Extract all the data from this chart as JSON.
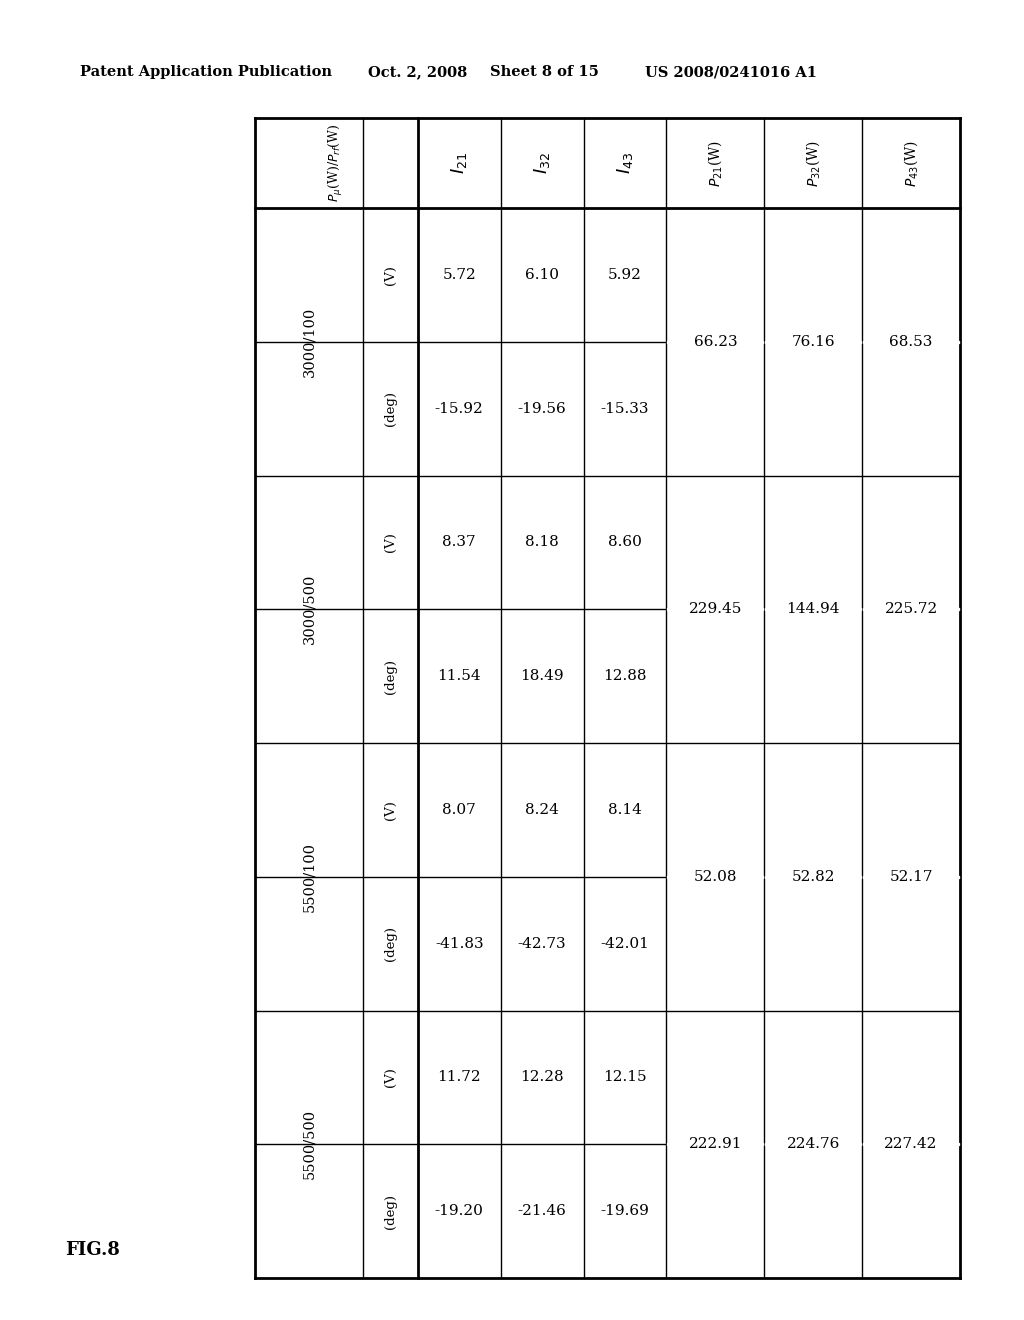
{
  "header_line1": "Patent Application Publication",
  "header_date": "Oct. 2, 2008",
  "header_sheet": "Sheet 8 of 15",
  "header_patent": "US 2008/0241016 A1",
  "fig_label": "FIG.8",
  "row_groups": [
    {
      "label": "3000/100",
      "units": [
        "(V)",
        "(deg)"
      ],
      "I21": [
        "5.72",
        "-15.92"
      ],
      "I32": [
        "6.10",
        "-19.56"
      ],
      "I43": [
        "5.92",
        "-15.33"
      ],
      "P21": "66.23",
      "P32": "76.16",
      "P43": "68.53"
    },
    {
      "label": "3000/500",
      "units": [
        "(V)",
        "(deg)"
      ],
      "I21": [
        "8.37",
        "11.54"
      ],
      "I32": [
        "8.18",
        "18.49"
      ],
      "I43": [
        "8.60",
        "12.88"
      ],
      "P21": "229.45",
      "P32": "144.94",
      "P43": "225.72"
    },
    {
      "label": "5500/100",
      "units": [
        "(V)",
        "(deg)"
      ],
      "I21": [
        "8.07",
        "-41.83"
      ],
      "I32": [
        "8.24",
        "-42.73"
      ],
      "I43": [
        "8.14",
        "-42.01"
      ],
      "P21": "52.08",
      "P32": "52.82",
      "P43": "52.17"
    },
    {
      "label": "5500/500",
      "units": [
        "(V)",
        "(deg)"
      ],
      "I21": [
        "11.72",
        "-19.20"
      ],
      "I32": [
        "12.28",
        "-21.46"
      ],
      "I43": [
        "12.15",
        "-19.69"
      ],
      "P21": "222.91",
      "P32": "224.76",
      "P43": "227.42"
    }
  ],
  "background_color": "#ffffff",
  "text_color": "#000000"
}
